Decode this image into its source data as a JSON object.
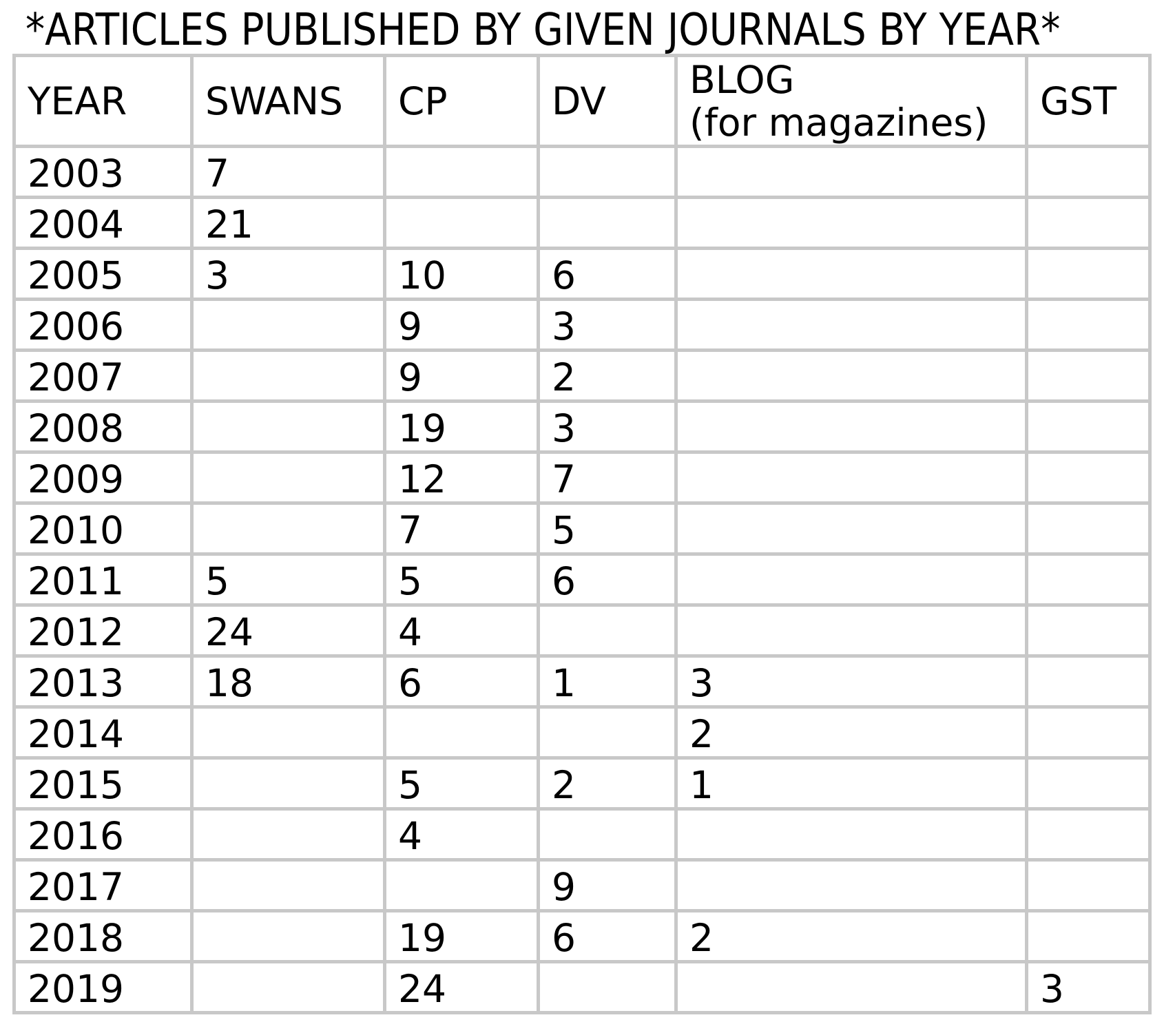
{
  "title": "*ARTICLES PUBLISHED BY GIVEN JOURNALS BY YEAR*",
  "chart_data": {
    "type": "table",
    "title": "*ARTICLES PUBLISHED BY GIVEN JOURNALS BY YEAR*",
    "columns": [
      {
        "key": "year",
        "label": "YEAR",
        "sublabel": ""
      },
      {
        "key": "swans",
        "label": "SWANS",
        "sublabel": ""
      },
      {
        "key": "cp",
        "label": "CP",
        "sublabel": ""
      },
      {
        "key": "dv",
        "label": "DV",
        "sublabel": ""
      },
      {
        "key": "blog",
        "label": "BLOG",
        "sublabel": "(for magazines)"
      },
      {
        "key": "gst",
        "label": "GST",
        "sublabel": ""
      }
    ],
    "rows": [
      [
        "2003",
        "7",
        "",
        "",
        "",
        ""
      ],
      [
        "2004",
        "21",
        "",
        "",
        "",
        ""
      ],
      [
        "2005",
        "3",
        "10",
        "6",
        "",
        ""
      ],
      [
        "2006",
        "",
        "9",
        "3",
        "",
        ""
      ],
      [
        "2007",
        "",
        "9",
        "2",
        "",
        ""
      ],
      [
        "2008",
        "",
        "19",
        "3",
        "",
        ""
      ],
      [
        "2009",
        "",
        "12",
        "7",
        "",
        ""
      ],
      [
        "2010",
        "",
        "7",
        "5",
        "",
        ""
      ],
      [
        "2011",
        "5",
        "5",
        "6",
        "",
        ""
      ],
      [
        "2012",
        "24",
        "4",
        "",
        "",
        ""
      ],
      [
        "2013",
        "18",
        "6",
        "1",
        "3",
        ""
      ],
      [
        "2014",
        "",
        "",
        "",
        "2",
        ""
      ],
      [
        "2015",
        "",
        "5",
        "2",
        "1",
        ""
      ],
      [
        "2016",
        "",
        "4",
        "",
        "",
        ""
      ],
      [
        "2017",
        "",
        "",
        "9",
        "",
        ""
      ],
      [
        "2018",
        "",
        "19",
        "6",
        "2",
        ""
      ],
      [
        "2019",
        "",
        "24",
        "",
        "",
        "3"
      ]
    ]
  },
  "colors": {
    "background": "#ffffff",
    "grid": "#c8c8c8",
    "text": "#000000"
  }
}
